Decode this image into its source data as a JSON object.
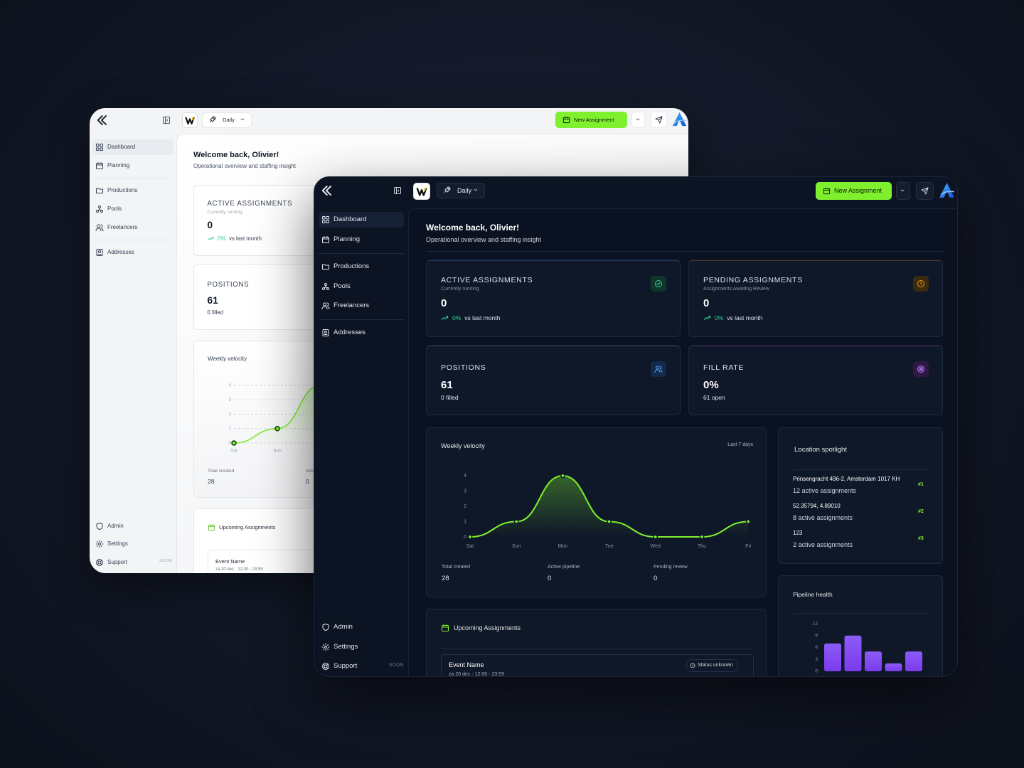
{
  "brand": {
    "mode": "Daily",
    "new_button": "New Assignment"
  },
  "nav": {
    "main": [
      "Dashboard",
      "Planning",
      "Productions",
      "Pools",
      "Freelancers",
      "Addresses"
    ],
    "bottom": [
      "Admin",
      "Settings",
      "Support"
    ],
    "soon": "SOON"
  },
  "header": {
    "title": "Welcome back, Olivier!",
    "subtitle": "Operational overview and staffing insight"
  },
  "stats": [
    {
      "title": "ACTIVE ASSIGNMENTS",
      "subtitle": "Currently running",
      "value": "0",
      "change": "0%",
      "change_text": "vs last month"
    },
    {
      "title": "PENDING ASSIGNMENTS",
      "subtitle": "Assignments Awaiting Review",
      "value": "0",
      "change": "0%",
      "change_text": "vs last month"
    },
    {
      "title": "POSITIONS",
      "value": "61",
      "detail": "0 filled"
    },
    {
      "title": "FILL RATE",
      "value": "0%",
      "detail": "61 open"
    }
  ],
  "chart_data": [
    {
      "type": "line",
      "title": "Weekly velocity",
      "subtitle": "Last 7 days",
      "categories": [
        "Sat",
        "Sun",
        "Mon",
        "Tue",
        "Wed",
        "Thu",
        "Fri"
      ],
      "values": [
        0,
        1,
        4,
        1,
        0,
        0,
        1
      ],
      "ylim": [
        0,
        4
      ],
      "yticks": [
        0,
        1,
        2,
        3,
        4
      ],
      "color": "#7ef02e"
    },
    {
      "type": "bar",
      "title": "Pipeline health",
      "values": [
        7,
        9,
        5,
        2,
        5
      ],
      "ylim": [
        0,
        12
      ],
      "yticks": [
        0,
        3,
        6,
        9,
        12
      ],
      "color": "#7c3aed"
    }
  ],
  "velocity_totals": [
    {
      "label": "Total created",
      "value": "28"
    },
    {
      "label": "Active pipeline",
      "value": "0"
    },
    {
      "label": "Pending review",
      "value": "0"
    }
  ],
  "location": {
    "title": "Location spotlight",
    "items": [
      {
        "place": "Prinsengracht 496-2, Amsterdam 1017 KH",
        "count": "12 active assignments",
        "rank": "#1"
      },
      {
        "place": "52.35794, 4.89010",
        "count": "8 active assignments",
        "rank": "#2"
      },
      {
        "place": "123",
        "count": "2 active assignments",
        "rank": "#3"
      }
    ]
  },
  "upcoming": {
    "title": "Upcoming Assignments",
    "event": {
      "name": "Event Name",
      "date": "za 20 dec · 12:00 - 23:59",
      "status": "Status unknown"
    }
  }
}
